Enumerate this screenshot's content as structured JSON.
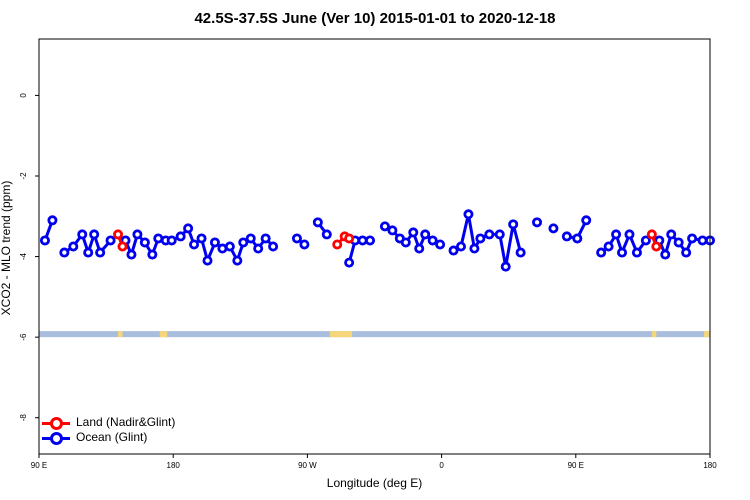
{
  "chart_data": {
    "type": "line",
    "title": "42.5S-37.5S June (Ver 10)   2015-01-01 to 2020-12-18",
    "xlabel": "Longitude (deg E)",
    "ylabel": "XCO2 - MLO trend (ppm)",
    "x_ticks": [
      {
        "value": 90,
        "label": "90 E"
      },
      {
        "value": 180,
        "label": "180"
      },
      {
        "value": 270,
        "label": "90 W"
      },
      {
        "value": 360,
        "label": "0"
      },
      {
        "value": 450,
        "label": "90 E"
      },
      {
        "value": 540,
        "label": "180"
      }
    ],
    "y_ticks": [
      0,
      -2,
      -4,
      -6,
      -8
    ],
    "xlim": [
      90,
      540
    ],
    "ylim": [
      -8.9,
      1.4
    ],
    "grid": false,
    "legend_position": "bottom-left",
    "series": [
      {
        "name": "Ocean (Glint)",
        "color": "#0000ee",
        "segments": [
          [
            [
              94,
              -3.6
            ],
            [
              99,
              -3.1
            ]
          ],
          [
            [
              107,
              -3.9
            ],
            [
              113,
              -3.75
            ],
            [
              119,
              -3.45
            ],
            [
              123,
              -3.9
            ],
            [
              127,
              -3.45
            ],
            [
              131,
              -3.9
            ],
            [
              138,
              -3.6
            ]
          ],
          [
            [
              148,
              -3.6
            ],
            [
              152,
              -3.95
            ],
            [
              156,
              -3.45
            ],
            [
              161,
              -3.65
            ],
            [
              166,
              -3.95
            ],
            [
              170,
              -3.55
            ],
            [
              175,
              -3.6
            ],
            [
              179,
              -3.6
            ],
            [
              185,
              -3.5
            ],
            [
              190,
              -3.3
            ],
            [
              194,
              -3.7
            ],
            [
              199,
              -3.55
            ],
            [
              203,
              -4.1
            ],
            [
              208,
              -3.65
            ],
            [
              213,
              -3.8
            ],
            [
              218,
              -3.75
            ],
            [
              223,
              -4.1
            ],
            [
              227,
              -3.65
            ],
            [
              232,
              -3.55
            ],
            [
              237,
              -3.8
            ],
            [
              242,
              -3.55
            ],
            [
              247,
              -3.75
            ]
          ],
          [
            [
              263,
              -3.55
            ],
            [
              268,
              -3.7
            ]
          ],
          [
            [
              277,
              -3.15
            ],
            [
              283,
              -3.45
            ]
          ],
          [
            [
              298,
              -4.15
            ],
            [
              302,
              -3.6
            ],
            [
              307,
              -3.6
            ],
            [
              312,
              -3.6
            ]
          ],
          [
            [
              322,
              -3.25
            ],
            [
              327,
              -3.35
            ],
            [
              332,
              -3.55
            ],
            [
              336,
              -3.65
            ],
            [
              341,
              -3.4
            ],
            [
              345,
              -3.8
            ],
            [
              349,
              -3.45
            ],
            [
              354,
              -3.6
            ],
            [
              359,
              -3.7
            ]
          ],
          [
            [
              368,
              -3.85
            ],
            [
              373,
              -3.75
            ],
            [
              378,
              -2.95
            ],
            [
              382,
              -3.8
            ],
            [
              386,
              -3.55
            ],
            [
              392,
              -3.45
            ],
            [
              399,
              -3.45
            ],
            [
              403,
              -4.25
            ],
            [
              408,
              -3.2
            ],
            [
              413,
              -3.9
            ]
          ],
          [
            [
              424,
              -3.15
            ]
          ],
          [
            [
              435,
              -3.3
            ]
          ],
          [
            [
              444,
              -3.5
            ],
            [
              451,
              -3.55
            ],
            [
              457,
              -3.1
            ]
          ],
          [
            [
              467,
              -3.9
            ],
            [
              472,
              -3.75
            ],
            [
              477,
              -3.45
            ],
            [
              481,
              -3.9
            ],
            [
              486,
              -3.45
            ],
            [
              491,
              -3.9
            ],
            [
              497,
              -3.6
            ]
          ],
          [
            [
              506,
              -3.6
            ],
            [
              510,
              -3.95
            ],
            [
              514,
              -3.45
            ],
            [
              519,
              -3.65
            ],
            [
              524,
              -3.9
            ],
            [
              528,
              -3.55
            ],
            [
              535,
              -3.6
            ],
            [
              540,
              -3.6
            ]
          ]
        ]
      },
      {
        "name": "Land (Nadir&Glint)",
        "color": "#ff0000",
        "segments": [
          [
            [
              143,
              -3.45
            ],
            [
              146,
              -3.75
            ]
          ],
          [
            [
              290,
              -3.7
            ],
            [
              295,
              -3.5
            ],
            [
              298,
              -3.55
            ]
          ],
          [
            [
              501,
              -3.45
            ],
            [
              504,
              -3.75
            ]
          ]
        ]
      }
    ],
    "surface_band": {
      "y_range": [
        -5.85,
        -6.0
      ],
      "water_color": "#a8bedc",
      "land_color": "#f5d67a",
      "land_x": [
        [
          143,
          146
        ],
        [
          171,
          176
        ],
        [
          285,
          300
        ],
        [
          501,
          504
        ],
        [
          536,
          540
        ]
      ]
    }
  }
}
